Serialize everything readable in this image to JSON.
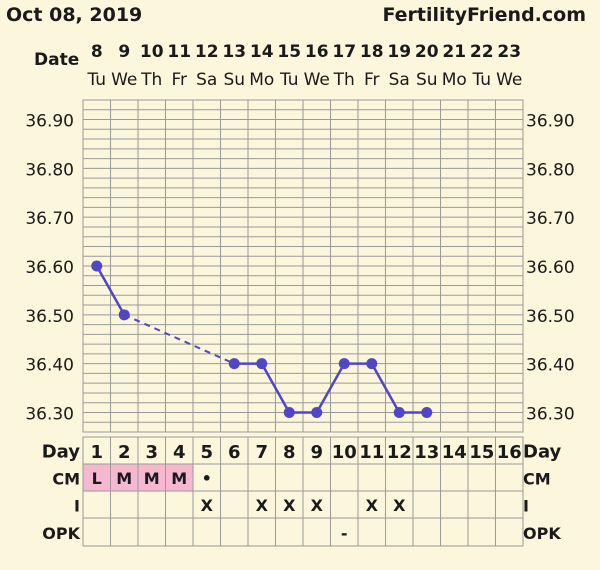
{
  "header": {
    "date": "Oct 08, 2019",
    "site": "FertilityFriend.com"
  },
  "labels": {
    "date_row": "Date",
    "day_row": "Day",
    "cm_row": "CM",
    "i_row": "I",
    "opk_row": "OPK"
  },
  "dates": [
    "8",
    "9",
    "10",
    "11",
    "12",
    "13",
    "14",
    "15",
    "16",
    "17",
    "18",
    "19",
    "20",
    "21",
    "22",
    "23"
  ],
  "weekdays": [
    "Tu",
    "We",
    "Th",
    "Fr",
    "Sa",
    "Su",
    "Mo",
    "Tu",
    "We",
    "Th",
    "Fr",
    "Sa",
    "Su",
    "Mo",
    "Tu",
    "We"
  ],
  "cycle_days": [
    "1",
    "2",
    "3",
    "4",
    "5",
    "6",
    "7",
    "8",
    "9",
    "10",
    "11",
    "12",
    "13",
    "14",
    "15",
    "16"
  ],
  "cm": [
    "L",
    "M",
    "M",
    "M",
    "•",
    "",
    "",
    "",
    "",
    "",
    "",
    "",
    "",
    "",
    "",
    ""
  ],
  "intercourse": [
    "",
    "",
    "",
    "",
    "X",
    "",
    "X",
    "X",
    "X",
    "",
    "X",
    "X",
    "",
    "",
    "",
    ""
  ],
  "opk": [
    "",
    "",
    "",
    "",
    "",
    "",
    "",
    "",
    "",
    "-",
    "",
    "",
    "",
    "",
    "",
    ""
  ],
  "colors": {
    "line": "#5046c8",
    "background": "#fbf6dc",
    "grid": "#9a9a9a",
    "cm_highlight": "#f5b8cf"
  },
  "chart_data": {
    "type": "line",
    "x": [
      1,
      2,
      3,
      4,
      5,
      6,
      7,
      8,
      9,
      10,
      11,
      12,
      13,
      14,
      15,
      16
    ],
    "series": [
      {
        "values": [
          36.6,
          36.5,
          null,
          null,
          null,
          36.4,
          36.4,
          36.3,
          36.3,
          36.4,
          36.4,
          36.3,
          36.3,
          null,
          null,
          null
        ]
      }
    ],
    "dashed_gap": [
      2,
      6
    ],
    "y_ticks": [
      "36.90",
      "36.80",
      "36.70",
      "36.60",
      "36.50",
      "36.40",
      "36.30"
    ],
    "ylim": [
      36.26,
      36.94
    ],
    "grid": true
  }
}
